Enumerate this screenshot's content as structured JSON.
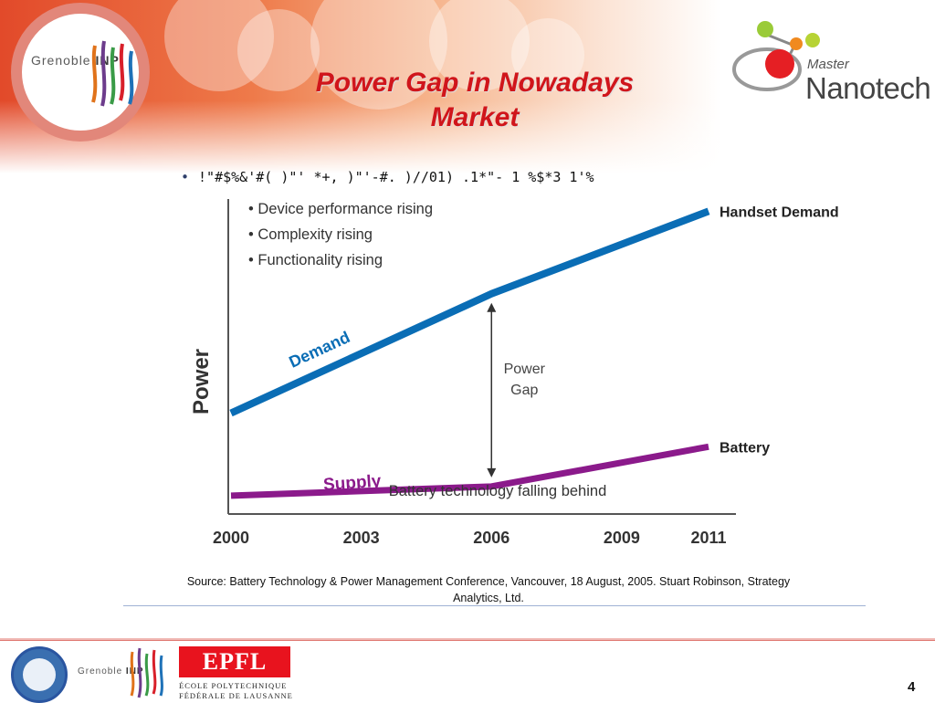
{
  "slide": {
    "title_line1": "Power Gap in Nowadays",
    "title_line2": "Market",
    "bullet_text": "!\"#$%&'#( )\"' *+, )\"'-#. )//01) .1*\"- 1 %$*3 1'%",
    "source_line1": "Source: Battery Technology & Power Management Conference, Vancouver, 18 August, 2005. Stuart Robinson, Strategy",
    "source_line2": "Analytics, Ltd.",
    "page_number": "4"
  },
  "logos": {
    "grenoble_inp": {
      "name": "Grenoble",
      "mark": "INP"
    },
    "master_nanotech": {
      "line1": "Master",
      "line2": "Nanotech"
    },
    "epfl": {
      "word": "EPFL",
      "line1": "ÉCOLE POLYTECHNIQUE",
      "line2": "FÉDÉRALE DE LAUSANNE"
    },
    "seal_icon": "university-seal-icon"
  },
  "colors": {
    "title": "#d0151b",
    "demand": "#0a6db5",
    "supply": "#8b1a8b",
    "epfl": "#e8131e"
  },
  "chart_data": {
    "type": "line",
    "title": "",
    "xlabel": "",
    "ylabel": "Power",
    "categories": [
      "2000",
      "2003",
      "2006",
      "2009",
      "2011"
    ],
    "x": [
      2000,
      2006,
      2011
    ],
    "series": [
      {
        "name": "Demand",
        "end_label": "Handset Demand",
        "values": [
          0.33,
          0.72,
          0.99
        ]
      },
      {
        "name": "Supply",
        "end_label": "Battery",
        "values": [
          0.06,
          0.09,
          0.22
        ]
      }
    ],
    "ylim": [
      0,
      1
    ],
    "grid": false,
    "annotations": {
      "bullets": [
        "Device performance rising",
        "Complexity rising",
        "Functionality rising"
      ],
      "gap_label_line1": "Power",
      "gap_label_line2": "Gap",
      "gap_x": 2006,
      "supply_note": "Battery technology falling behind"
    }
  }
}
